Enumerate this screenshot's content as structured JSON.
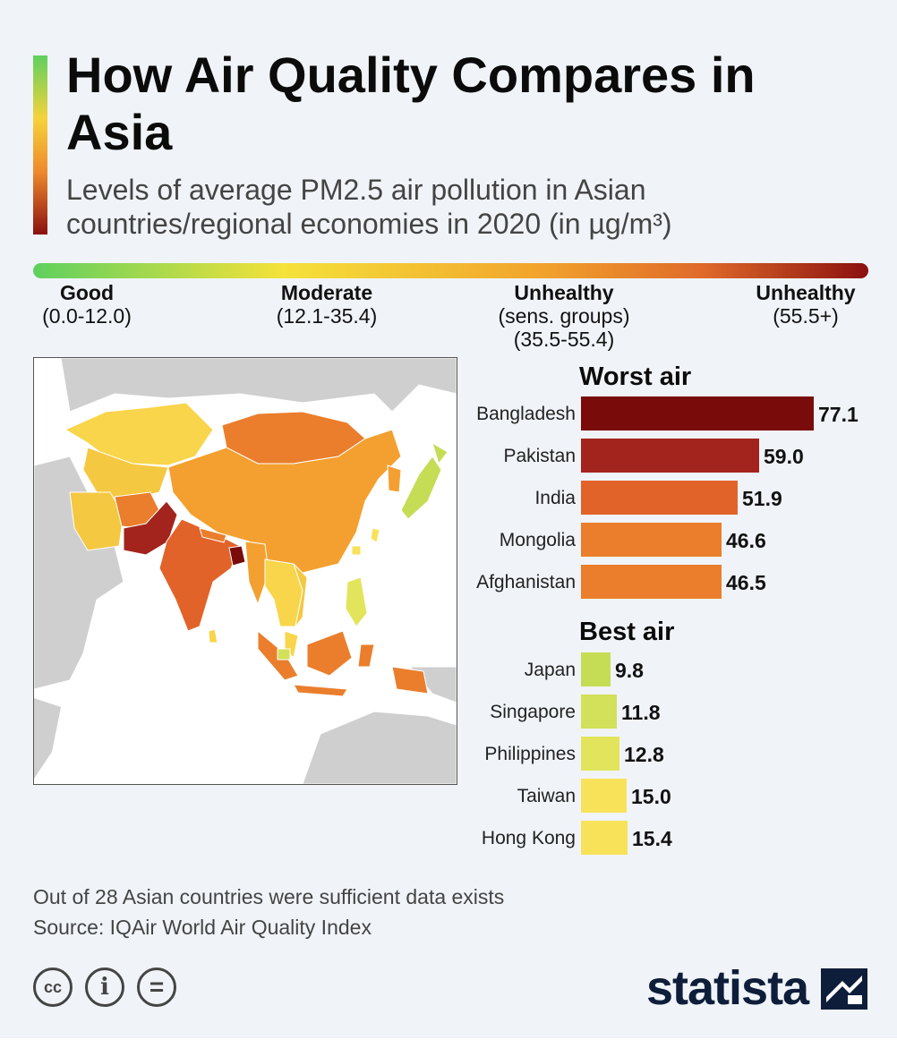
{
  "title": "How Air Quality Compares in Asia",
  "subtitle": "Levels of average PM2.5 air pollution in Asian countries/regional economies in 2020 (in µg/m³)",
  "scale": [
    {
      "name": "Good",
      "range": "(0.0-12.0)"
    },
    {
      "name": "Moderate",
      "range": "(12.1-35.4)"
    },
    {
      "name": "Unhealthy",
      "range": "(sens. groups)",
      "range2": "(35.5-55.4)"
    },
    {
      "name": "Unhealthy",
      "range": "(55.5+)"
    }
  ],
  "chart_data": [
    {
      "type": "bar",
      "title": "Worst air",
      "categories": [
        "Bangladesh",
        "Pakistan",
        "India",
        "Mongolia",
        "Afghanistan"
      ],
      "values": [
        77.1,
        59.0,
        51.9,
        46.6,
        46.5
      ],
      "value_labels": [
        "77.1",
        "59.0",
        "51.9",
        "46.6",
        "46.5"
      ],
      "colors": [
        "#7a0b0b",
        "#a3241c",
        "#e2632a",
        "#ea7e2c",
        "#ea7e2c"
      ]
    },
    {
      "type": "bar",
      "title": "Best air",
      "categories": [
        "Japan",
        "Singapore",
        "Philippines",
        "Taiwan",
        "Hong Kong"
      ],
      "values": [
        9.8,
        11.8,
        12.8,
        15.0,
        15.4
      ],
      "value_labels": [
        "9.8",
        "11.8",
        "12.8",
        "15.0",
        "15.4"
      ],
      "colors": [
        "#c5dc55",
        "#d2e05a",
        "#e2e45c",
        "#f8e25a",
        "#f8e25a"
      ]
    }
  ],
  "footer": {
    "note": "Out of 28 Asian countries were sufficient data exists",
    "source": "Source: IQAir World Air Quality Index"
  },
  "license_icons": [
    {
      "icon": "creative-commons-icon",
      "glyph": "cc"
    },
    {
      "icon": "attribution-icon",
      "glyph": "i"
    },
    {
      "icon": "no-derivatives-icon",
      "glyph": "="
    }
  ],
  "brand": {
    "name": "statista"
  }
}
